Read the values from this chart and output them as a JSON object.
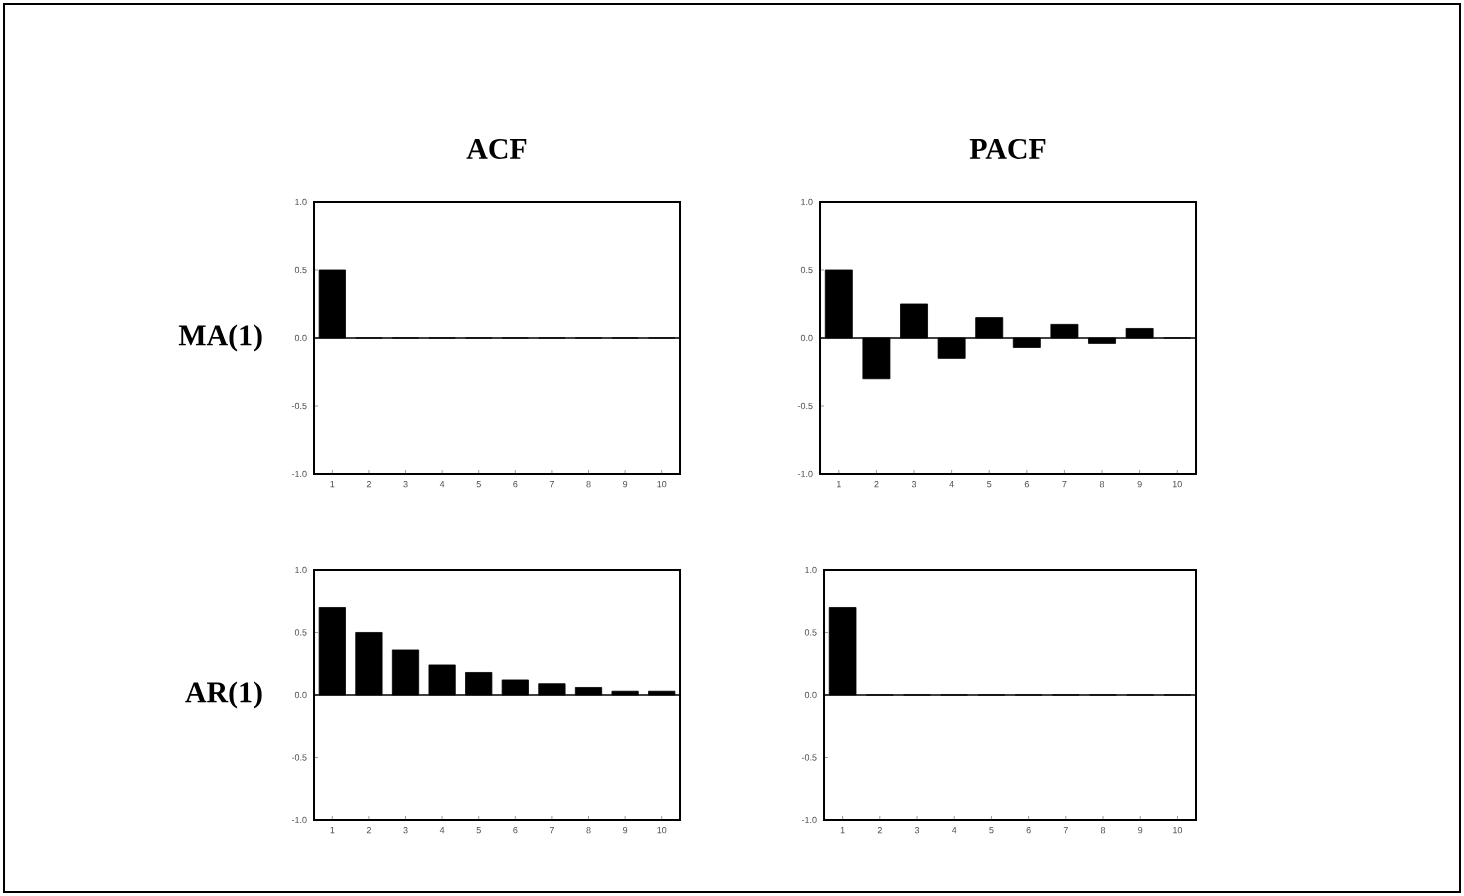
{
  "chart_data": [
    {
      "type": "bar",
      "title": "ACF",
      "ylabel": "MA(1)",
      "categories": [
        "1",
        "2",
        "3",
        "4",
        "5",
        "6",
        "7",
        "8",
        "9",
        "10"
      ],
      "values": [
        0.5,
        0,
        0,
        0,
        0,
        0,
        0,
        0,
        0,
        0
      ],
      "color": "#000000",
      "ylim": [
        -1,
        1
      ],
      "yticks": [
        {
          "value": 1,
          "label": "1.0"
        },
        {
          "value": 0.5,
          "label": "0.5"
        },
        {
          "value": 0,
          "label": "0.0"
        },
        {
          "value": -0.5,
          "label": "-0.5"
        },
        {
          "value": -1,
          "label": "-1.0"
        }
      ],
      "ref_lines": [
        {
          "axis": "y",
          "value": 0
        }
      ]
    },
    {
      "type": "bar",
      "title": "PACF",
      "categories": [
        "1",
        "2",
        "3",
        "4",
        "5",
        "6",
        "7",
        "8",
        "9",
        "10"
      ],
      "values": [
        0.5,
        -0.3,
        0.25,
        -0.15,
        0.15,
        -0.07,
        0.1,
        -0.04,
        0.07,
        0
      ],
      "color": "#000000",
      "ylim": [
        -1,
        1
      ],
      "yticks": [
        {
          "value": 1,
          "label": "1.0"
        },
        {
          "value": 0.5,
          "label": "0.5"
        },
        {
          "value": 0,
          "label": "0.0"
        },
        {
          "value": -0.5,
          "label": "-0.5"
        },
        {
          "value": -1,
          "label": "-1.0"
        }
      ],
      "ref_lines": [
        {
          "axis": "y",
          "value": 0
        }
      ]
    },
    {
      "type": "bar",
      "ylabel": "AR(1)",
      "categories": [
        "1",
        "2",
        "3",
        "4",
        "5",
        "6",
        "7",
        "8",
        "9",
        "10"
      ],
      "values": [
        0.7,
        0.5,
        0.36,
        0.24,
        0.18,
        0.12,
        0.09,
        0.06,
        0.03,
        0.03
      ],
      "color": "#000000",
      "ylim": [
        -1,
        1
      ],
      "yticks": [
        {
          "value": 1,
          "label": "1.0"
        },
        {
          "value": 0.5,
          "label": "0.5"
        },
        {
          "value": 0,
          "label": "0.0"
        },
        {
          "value": -0.5,
          "label": "-0.5"
        },
        {
          "value": -1,
          "label": "-1.0"
        }
      ],
      "ref_lines": [
        {
          "axis": "y",
          "value": 0
        }
      ]
    },
    {
      "type": "bar",
      "categories": [
        "1",
        "2",
        "3",
        "4",
        "5",
        "6",
        "7",
        "8",
        "9",
        "10"
      ],
      "values": [
        0.7,
        0,
        0,
        0,
        0,
        0,
        0,
        0,
        0,
        0
      ],
      "color": "#000000",
      "ylim": [
        -1,
        1
      ],
      "yticks": [
        {
          "value": 1,
          "label": "1.0"
        },
        {
          "value": 0.5,
          "label": "0.5"
        },
        {
          "value": 0,
          "label": "0.0"
        },
        {
          "value": -0.5,
          "label": "-0.5"
        },
        {
          "value": -1,
          "label": "-1.0"
        }
      ],
      "ref_lines": [
        {
          "axis": "y",
          "value": 0
        }
      ]
    }
  ]
}
